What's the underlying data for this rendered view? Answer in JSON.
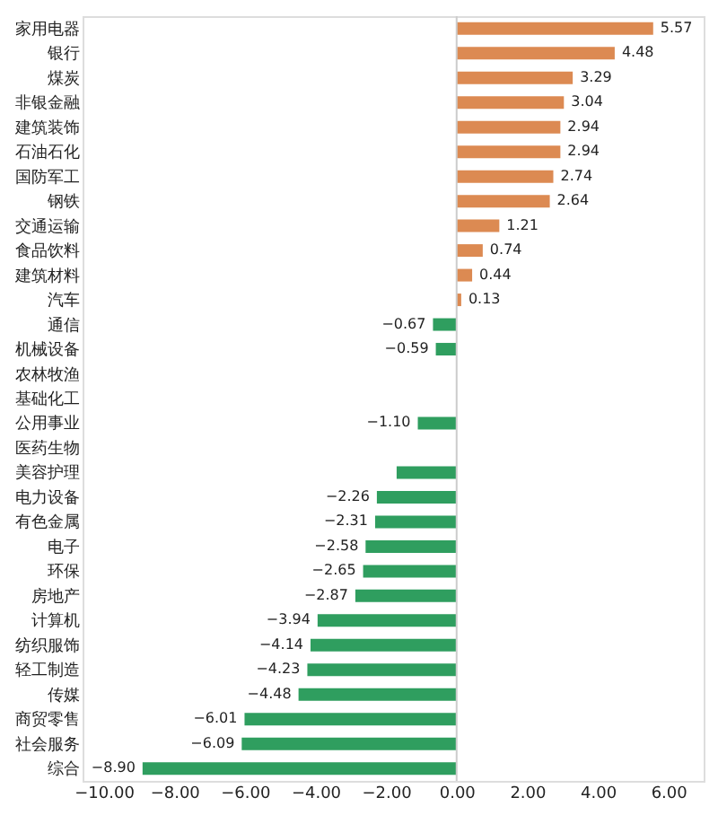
{
  "chart_data": {
    "type": "bar",
    "orientation": "horizontal",
    "categories": [
      "家用电器",
      "银行",
      "煤炭",
      "非银金融",
      "建筑装饰",
      "石油石化",
      "国防军工",
      "钢铁",
      "交通运输",
      "食品饮料",
      "建筑材料",
      "汽车",
      "通信",
      "机械设备",
      "农林牧渔",
      "基础化工",
      "公用事业",
      "医药生物",
      "美容护理",
      "电力设备",
      "有色金属",
      "电子",
      "环保",
      "房地产",
      "计算机",
      "纺织服饰",
      "轻工制造",
      "传媒",
      "商贸零售",
      "社会服务",
      "综合"
    ],
    "values": [
      5.57,
      4.48,
      3.29,
      3.04,
      2.94,
      2.94,
      2.74,
      2.64,
      1.21,
      0.74,
      0.44,
      0.13,
      -0.67,
      -0.59,
      null,
      null,
      -1.1,
      null,
      -1.7,
      -2.26,
      -2.31,
      -2.58,
      -2.65,
      -2.87,
      -3.94,
      -4.14,
      -4.23,
      -4.48,
      -6.01,
      -6.09,
      -8.9
    ],
    "value_labels": [
      "5.57",
      "4.48",
      "3.29",
      "3.04",
      "2.94",
      "2.94",
      "2.74",
      "2.64",
      "1.21",
      "0.74",
      "0.44",
      "0.13",
      "−0.67",
      "−0.59",
      null,
      null,
      "−1.10",
      null,
      null,
      "−2.26",
      "−2.31",
      "−2.58",
      "−2.65",
      "−2.87",
      "−3.94",
      "−4.14",
      "−4.23",
      "−4.48",
      "−6.01",
      "−6.09",
      "−8.90"
    ],
    "colors": [
      "#dc8a52",
      "#dc8a52",
      "#dc8a52",
      "#dc8a52",
      "#dc8a52",
      "#dc8a52",
      "#dc8a52",
      "#dc8a52",
      "#dc8a52",
      "#dc8a52",
      "#dc8a52",
      "#dc8a52",
      "#2f9e5f",
      "#2f9e5f",
      "#2f9e5f",
      "#2f9e5f",
      "#2f9e5f",
      "#2f9e5f",
      "#2f9e5f",
      "#2f9e5f",
      "#2f9e5f",
      "#2f9e5f",
      "#2f9e5f",
      "#2f9e5f",
      "#2f9e5f",
      "#2f9e5f",
      "#2f9e5f",
      "#2f9e5f",
      "#2f9e5f",
      "#2f9e5f",
      "#2f9e5f"
    ],
    "xlim": [
      -10.6,
      7
    ],
    "xticks": [
      {
        "value": -10,
        "label": "−10.00"
      },
      {
        "value": -8,
        "label": "−8.00"
      },
      {
        "value": -6,
        "label": "−6.00"
      },
      {
        "value": -4,
        "label": "−4.00"
      },
      {
        "value": -2,
        "label": "−2.00"
      },
      {
        "value": 0,
        "label": "0.00"
      },
      {
        "value": 2,
        "label": "2.00"
      },
      {
        "value": 4,
        "label": "4.00"
      },
      {
        "value": 6,
        "label": "6.00"
      }
    ],
    "ref_lines": [
      {
        "axis": "x",
        "value": 0,
        "color": "#cccccc"
      }
    ],
    "grid": false
  }
}
